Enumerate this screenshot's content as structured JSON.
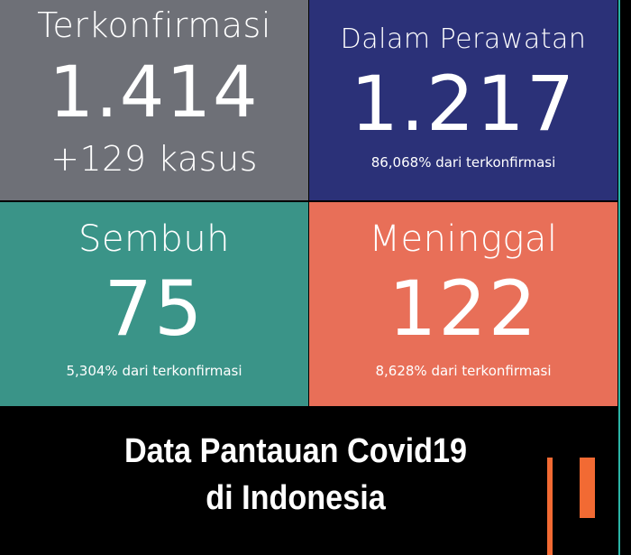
{
  "cards": [
    {
      "label": "Terkonfirmasi",
      "value": "1.414",
      "sub": "+129 kasus",
      "color": "#6e7077"
    },
    {
      "label": "Dalam Perawatan",
      "value": "1.217",
      "sub": "86,068% dari terkonfirmasi",
      "color": "#2b3178"
    },
    {
      "label": "Sembuh",
      "value": "75",
      "sub": "5,304% dari terkonfirmasi",
      "color": "#3a9488"
    },
    {
      "label": "Meninggal",
      "value": "122",
      "sub": "8,628% dari terkonfirmasi",
      "color": "#e86f58"
    }
  ],
  "caption": {
    "line1": "Data Pantauan Covid19",
    "line2": "di Indonesia"
  },
  "accent": "#f26a33"
}
